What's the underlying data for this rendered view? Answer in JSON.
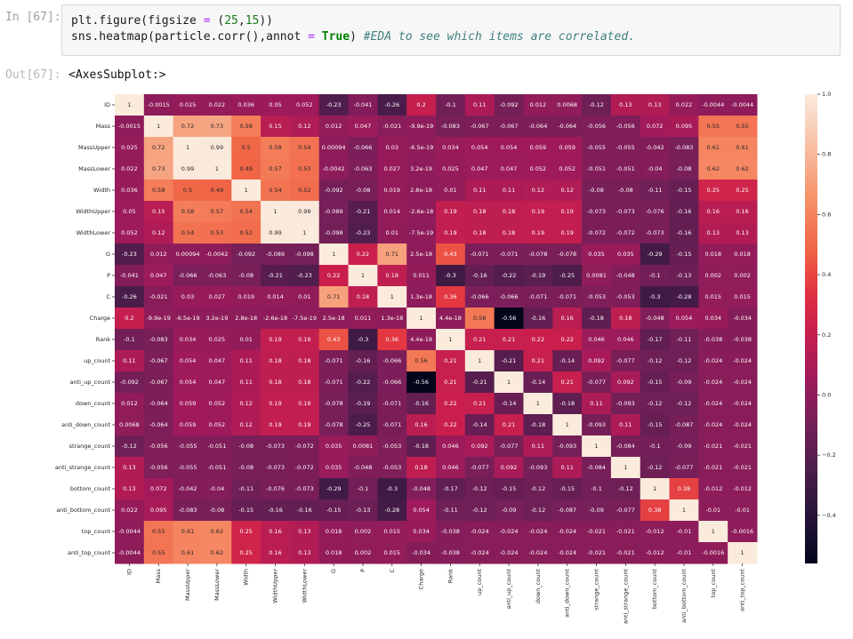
{
  "cell": {
    "in_prompt": "In [67]:",
    "out_prompt": "Out[67]:",
    "line1": {
      "a": "plt.figure(figsize ",
      "op": "=",
      "b": " (",
      "n1": "25",
      "c": ",",
      "n2": "15",
      "d": "))"
    },
    "line2": {
      "a": "sns.heatmap(particle.corr(),annot ",
      "op": "=",
      "kw": "True",
      "b": ") ",
      "comment": "#EDA to see which items are correlated."
    },
    "output": "<AxesSubplot:>"
  },
  "colormap": {
    "name": "rocket",
    "stops": [
      [
        0.0,
        "#03051a"
      ],
      [
        0.08,
        "#1e1135"
      ],
      [
        0.2,
        "#4c1d4b"
      ],
      [
        0.3,
        "#751f58"
      ],
      [
        0.4,
        "#a11a5b"
      ],
      [
        0.5,
        "#ca1f4d"
      ],
      [
        0.58,
        "#e13342"
      ],
      [
        0.66,
        "#f06043"
      ],
      [
        0.78,
        "#f6926a"
      ],
      [
        0.88,
        "#f7bb9e"
      ],
      [
        1.0,
        "#faebdd"
      ]
    ]
  },
  "chart_data": {
    "type": "heatmap",
    "labels": [
      "ID",
      "Mass",
      "MassUpper",
      "MassLower",
      "Width",
      "WidthUpper",
      "WidthLower",
      "G",
      "P",
      "C",
      "Charge",
      "Rank",
      "up_count",
      "anti_up_count",
      "down_count",
      "anti_down_count",
      "strange_count",
      "anti_strange_count",
      "bottom_count",
      "anti_bottom_count",
      "top_count",
      "anti_top_count"
    ],
    "values": [
      [
        1,
        -0.0015,
        0.025,
        0.022,
        0.036,
        0.05,
        0.052,
        -0.23,
        -0.041,
        -0.26,
        0.2,
        -0.1,
        0.11,
        -0.092,
        0.012,
        0.0068,
        -0.12,
        0.13,
        0.13,
        0.022,
        -0.0044,
        -0.0044
      ],
      [
        -0.0015,
        1,
        0.72,
        0.73,
        0.58,
        0.15,
        0.12,
        0.012,
        0.047,
        -0.021,
        -9.9e-19,
        -0.083,
        -0.067,
        -0.067,
        -0.064,
        -0.064,
        -0.056,
        -0.056,
        0.072,
        0.095,
        0.55,
        0.55
      ],
      [
        0.025,
        0.72,
        1,
        0.99,
        0.5,
        0.58,
        0.54,
        0.00094,
        -0.066,
        0.03,
        -6.5e-19,
        0.034,
        0.054,
        0.054,
        0.059,
        0.059,
        -0.055,
        -0.055,
        -0.042,
        -0.083,
        0.61,
        0.61
      ],
      [
        0.022,
        0.73,
        0.99,
        1,
        0.49,
        0.57,
        0.53,
        -0.0042,
        -0.063,
        0.027,
        3.2e-19,
        0.025,
        0.047,
        0.047,
        0.052,
        0.052,
        -0.051,
        -0.051,
        -0.04,
        -0.08,
        0.62,
        0.62
      ],
      [
        0.036,
        0.58,
        0.5,
        0.49,
        1,
        0.54,
        0.52,
        -0.092,
        -0.08,
        0.019,
        2.8e-18,
        0.01,
        0.11,
        0.11,
        0.12,
        0.12,
        -0.08,
        -0.08,
        -0.11,
        -0.15,
        0.25,
        0.25
      ],
      [
        0.05,
        0.15,
        0.58,
        0.57,
        0.54,
        1,
        0.99,
        -0.089,
        -0.21,
        0.014,
        -2.6e-18,
        0.19,
        0.18,
        0.18,
        0.19,
        0.19,
        -0.073,
        -0.073,
        -0.076,
        -0.16,
        0.16,
        0.16
      ],
      [
        0.052,
        0.12,
        0.54,
        0.53,
        0.52,
        0.99,
        1,
        -0.098,
        -0.23,
        0.01,
        -7.5e-19,
        0.19,
        0.18,
        0.18,
        0.19,
        0.19,
        -0.072,
        -0.072,
        -0.073,
        -0.16,
        0.13,
        0.13
      ],
      [
        -0.23,
        0.012,
        0.00094,
        -0.0042,
        -0.092,
        -0.089,
        -0.098,
        1,
        0.22,
        0.71,
        2.5e-18,
        0.43,
        -0.071,
        -0.071,
        -0.078,
        -0.078,
        0.035,
        0.035,
        -0.29,
        -0.15,
        0.018,
        0.018
      ],
      [
        -0.041,
        0.047,
        -0.066,
        -0.063,
        -0.08,
        -0.21,
        -0.23,
        0.22,
        1,
        0.18,
        0.011,
        -0.3,
        -0.16,
        -0.22,
        -0.19,
        -0.25,
        0.0081,
        -0.048,
        -0.1,
        -0.13,
        0.002,
        0.002
      ],
      [
        -0.26,
        -0.021,
        0.03,
        0.027,
        0.019,
        0.014,
        0.01,
        0.71,
        0.18,
        1,
        1.3e-18,
        0.36,
        -0.066,
        -0.066,
        -0.071,
        -0.071,
        -0.053,
        -0.053,
        -0.3,
        -0.28,
        0.015,
        0.015
      ],
      [
        0.2,
        -9.9e-19,
        -6.5e-19,
        3.2e-19,
        2.8e-18,
        -2.6e-18,
        -7.5e-19,
        2.5e-18,
        0.011,
        1.3e-18,
        1,
        4.4e-18,
        0.56,
        -0.56,
        -0.16,
        0.16,
        -0.18,
        0.18,
        -0.048,
        0.054,
        0.034,
        -0.034
      ],
      [
        -0.1,
        -0.083,
        0.034,
        0.025,
        0.01,
        0.19,
        0.19,
        0.43,
        -0.3,
        0.36,
        4.4e-18,
        1,
        0.21,
        0.21,
        0.22,
        0.22,
        0.046,
        0.046,
        -0.17,
        -0.11,
        -0.038,
        -0.038
      ],
      [
        0.11,
        -0.067,
        0.054,
        0.047,
        0.11,
        0.18,
        0.18,
        -0.071,
        -0.16,
        -0.066,
        0.56,
        0.21,
        1,
        -0.21,
        0.21,
        -0.14,
        0.092,
        -0.077,
        -0.12,
        -0.12,
        -0.024,
        -0.024
      ],
      [
        -0.092,
        -0.067,
        0.054,
        0.047,
        0.11,
        0.18,
        0.18,
        -0.071,
        -0.22,
        -0.066,
        -0.56,
        0.21,
        -0.21,
        1,
        -0.14,
        0.21,
        -0.077,
        0.092,
        -0.15,
        -0.09,
        -0.024,
        -0.024
      ],
      [
        0.012,
        -0.064,
        0.059,
        0.052,
        0.12,
        0.19,
        0.19,
        -0.078,
        -0.19,
        -0.071,
        -0.16,
        0.22,
        0.21,
        -0.14,
        1,
        -0.18,
        0.11,
        -0.093,
        -0.12,
        -0.12,
        -0.024,
        -0.024
      ],
      [
        0.0068,
        -0.064,
        0.059,
        0.052,
        0.12,
        0.19,
        0.19,
        -0.078,
        -0.25,
        -0.071,
        0.16,
        0.22,
        -0.14,
        0.21,
        -0.18,
        1,
        -0.093,
        0.11,
        -0.15,
        -0.087,
        -0.024,
        -0.024
      ],
      [
        -0.12,
        -0.056,
        -0.055,
        -0.051,
        -0.08,
        -0.073,
        -0.072,
        0.035,
        0.0081,
        -0.053,
        -0.18,
        0.046,
        0.092,
        -0.077,
        0.11,
        -0.093,
        1,
        -0.084,
        -0.1,
        -0.09,
        -0.021,
        -0.021
      ],
      [
        0.13,
        -0.056,
        -0.055,
        -0.051,
        -0.08,
        -0.073,
        -0.072,
        0.035,
        -0.048,
        -0.053,
        0.18,
        0.046,
        -0.077,
        0.092,
        -0.093,
        0.11,
        -0.084,
        1,
        -0.12,
        -0.077,
        -0.021,
        -0.021
      ],
      [
        0.13,
        0.072,
        -0.042,
        -0.04,
        -0.11,
        -0.076,
        -0.073,
        -0.29,
        -0.1,
        -0.3,
        -0.048,
        -0.17,
        -0.12,
        -0.15,
        -0.12,
        -0.15,
        -0.1,
        -0.12,
        1,
        0.38,
        -0.012,
        -0.012
      ],
      [
        0.022,
        0.095,
        -0.083,
        -0.08,
        -0.15,
        -0.16,
        -0.16,
        -0.15,
        -0.13,
        -0.28,
        0.054,
        -0.11,
        -0.12,
        -0.09,
        -0.12,
        -0.087,
        -0.09,
        -0.077,
        0.38,
        1,
        -0.01,
        -0.01
      ],
      [
        -0.0044,
        0.55,
        0.61,
        0.62,
        0.25,
        0.16,
        0.13,
        0.018,
        0.002,
        0.015,
        0.034,
        -0.038,
        -0.024,
        -0.024,
        -0.024,
        -0.024,
        -0.021,
        -0.021,
        -0.012,
        -0.01,
        1,
        -0.0016
      ],
      [
        -0.0044,
        0.55,
        0.61,
        0.62,
        0.25,
        0.16,
        0.13,
        0.018,
        0.002,
        0.015,
        -0.034,
        -0.038,
        -0.024,
        -0.024,
        -0.024,
        -0.024,
        -0.021,
        -0.021,
        -0.012,
        -0.01,
        -0.0016,
        1
      ]
    ],
    "vmin": -0.56,
    "vmax": 1.0,
    "colorbar_ticks": [
      1.0,
      0.8,
      0.6,
      0.4,
      0.2,
      0.0,
      -0.2,
      -0.4
    ],
    "colorbar_tick_labels": [
      "1.0",
      "0.8",
      "0.6",
      "0.4",
      "0.2",
      "0.0",
      "−0.2",
      "−0.4"
    ]
  }
}
